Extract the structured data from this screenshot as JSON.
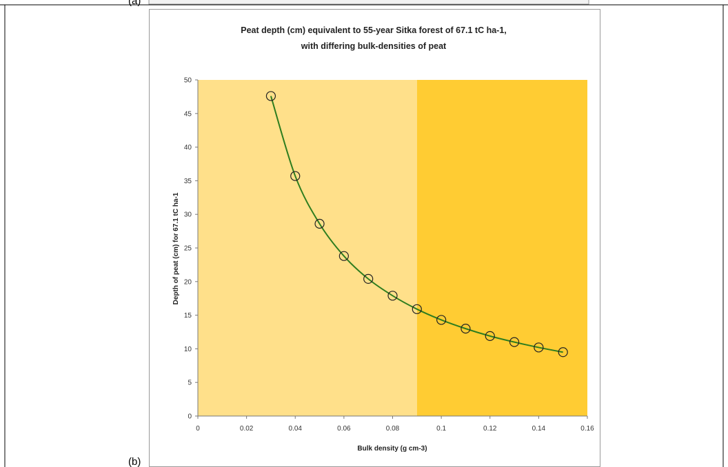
{
  "panel_labels": {
    "top": "(a)",
    "bottom": "(b)"
  },
  "chart_data": {
    "type": "line",
    "title": "Peat depth (cm) equivalent to 55-year Sitka forest of 67.1 tC ha-1,",
    "subtitle": "with differing bulk-densities of peat",
    "xlabel": "Bulk density (g cm-3)",
    "ylabel": "Depth of peat (cm) for 67.1 tC ha-1",
    "xlim": [
      0,
      0.16
    ],
    "ylim": [
      0,
      50
    ],
    "x_ticks": [
      "0",
      "0.02",
      "0.04",
      "0.06",
      "0.08",
      "0.1",
      "0.12",
      "0.14",
      "0.16"
    ],
    "y_ticks": [
      "0",
      "5",
      "10",
      "15",
      "20",
      "25",
      "30",
      "35",
      "40",
      "45",
      "50"
    ],
    "x": [
      0.03,
      0.04,
      0.05,
      0.06,
      0.07,
      0.08,
      0.09,
      0.1,
      0.11,
      0.12,
      0.13,
      0.14,
      0.15
    ],
    "series": [
      {
        "values": [
          47.6,
          35.7,
          28.6,
          23.8,
          20.4,
          17.9,
          15.9,
          14.3,
          13.0,
          11.9,
          11.0,
          10.2,
          9.5
        ]
      }
    ],
    "shaded_regions": [
      {
        "x_from": 0,
        "x_to": 0.09,
        "color": "#ffe08a"
      },
      {
        "x_from": 0.09,
        "x_to": 0.16,
        "color": "#ffcc33"
      }
    ],
    "colors": {
      "line": "#2e7d1f",
      "marker": "#222222",
      "plot_border": "#cccccc"
    },
    "grid": false,
    "legend": "none"
  }
}
